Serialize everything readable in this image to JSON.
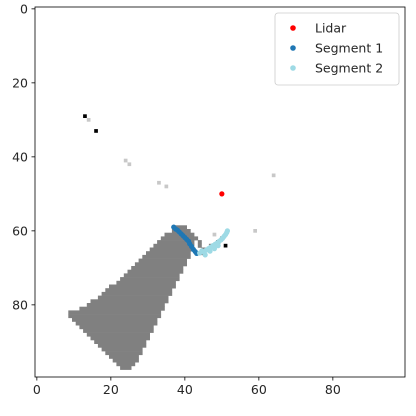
{
  "chart_data": {
    "type": "scatter",
    "title": "",
    "xlabel": "",
    "ylabel": "",
    "xlim": [
      -0.5,
      99.5
    ],
    "ylim": [
      99.5,
      -0.5
    ],
    "y_inverted": true,
    "grid": false,
    "x_ticks": [
      0,
      20,
      40,
      60,
      80
    ],
    "y_ticks": [
      0,
      20,
      40,
      60,
      80
    ],
    "legend_position": "top-right",
    "background_image": {
      "type": "occupancy-grid",
      "colors": {
        "occupied": "#000000",
        "unknown": "#808080",
        "faint": "#c8c8c8"
      },
      "occupied_cells": [
        [
          13,
          29
        ],
        [
          16,
          33
        ],
        [
          51,
          64
        ],
        [
          49,
          63
        ]
      ],
      "faint_cells": [
        [
          14,
          30
        ],
        [
          24,
          41
        ],
        [
          25,
          42
        ],
        [
          33,
          47
        ],
        [
          35,
          48
        ],
        [
          59,
          60
        ],
        [
          64,
          45
        ],
        [
          48,
          61
        ]
      ],
      "unknown_region": {
        "rows": [
          {
            "y": 59,
            "x0": 38,
            "x1": 40
          },
          {
            "y": 60,
            "x0": 37,
            "x1": 41
          },
          {
            "y": 61,
            "x0": 35,
            "x1": 42
          },
          {
            "y": 62,
            "x0": 34,
            "x1": 42
          },
          {
            "y": 63,
            "x0": 33,
            "x1": 42
          },
          {
            "y": 64,
            "x0": 32,
            "x1": 42
          },
          {
            "y": 65,
            "x0": 31,
            "x1": 42
          },
          {
            "y": 66,
            "x0": 30,
            "x1": 41
          },
          {
            "y": 67,
            "x0": 29,
            "x1": 41
          },
          {
            "y": 68,
            "x0": 28,
            "x1": 40
          },
          {
            "y": 69,
            "x0": 27,
            "x1": 40
          },
          {
            "y": 70,
            "x0": 26,
            "x1": 39
          },
          {
            "y": 71,
            "x0": 25,
            "x1": 39
          },
          {
            "y": 72,
            "x0": 24,
            "x1": 38
          },
          {
            "y": 73,
            "x0": 23,
            "x1": 38
          },
          {
            "y": 74,
            "x0": 22,
            "x1": 37
          },
          {
            "y": 75,
            "x0": 20,
            "x1": 37
          },
          {
            "y": 76,
            "x0": 19,
            "x1": 36
          },
          {
            "y": 77,
            "x0": 18,
            "x1": 36
          },
          {
            "y": 78,
            "x0": 17,
            "x1": 35
          },
          {
            "y": 79,
            "x0": 15,
            "x1": 35
          },
          {
            "y": 80,
            "x0": 14,
            "x1": 34
          },
          {
            "y": 81,
            "x0": 12,
            "x1": 34
          },
          {
            "y": 82,
            "x0": 9,
            "x1": 33
          },
          {
            "y": 83,
            "x0": 9,
            "x1": 33
          },
          {
            "y": 84,
            "x0": 10,
            "x1": 32
          },
          {
            "y": 85,
            "x0": 11,
            "x1": 32
          },
          {
            "y": 86,
            "x0": 12,
            "x1": 31
          },
          {
            "y": 87,
            "x0": 13,
            "x1": 31
          },
          {
            "y": 88,
            "x0": 14,
            "x1": 30
          },
          {
            "y": 89,
            "x0": 15,
            "x1": 30
          },
          {
            "y": 90,
            "x0": 16,
            "x1": 29
          },
          {
            "y": 91,
            "x0": 17,
            "x1": 29
          },
          {
            "y": 92,
            "x0": 18,
            "x1": 28
          },
          {
            "y": 93,
            "x0": 19,
            "x1": 28
          },
          {
            "y": 94,
            "x0": 20,
            "x1": 27
          },
          {
            "y": 95,
            "x0": 21,
            "x1": 27
          },
          {
            "y": 96,
            "x0": 22,
            "x1": 26
          },
          {
            "y": 97,
            "x0": 23,
            "x1": 25
          }
        ],
        "extra_cells": [
          [
            43,
            62
          ],
          [
            44,
            63
          ],
          [
            44,
            64
          ],
          [
            45,
            65
          ],
          [
            45,
            66
          ],
          [
            46,
            65
          ],
          [
            47,
            64
          ],
          [
            48,
            64
          ],
          [
            49,
            63
          ],
          [
            50,
            62
          ]
        ]
      }
    },
    "series": [
      {
        "name": "Lidar",
        "color": "#ff0000",
        "points": [
          [
            50,
            50
          ]
        ]
      },
      {
        "name": "Segment 1",
        "color": "#1f77b4",
        "points": [
          [
            37,
            59
          ],
          [
            37.5,
            59.5
          ],
          [
            38,
            59.8
          ],
          [
            38.5,
            60.3
          ],
          [
            39,
            60.8
          ],
          [
            39.5,
            61.3
          ],
          [
            40,
            61.8
          ],
          [
            40.5,
            62.3
          ],
          [
            41,
            62.8
          ],
          [
            41.3,
            63.5
          ],
          [
            41.8,
            64.2
          ],
          [
            42.3,
            65
          ],
          [
            42.8,
            65.6
          ],
          [
            43.2,
            66.1
          ]
        ]
      },
      {
        "name": "Segment 2",
        "color": "#9edae5",
        "points": [
          [
            44,
            66
          ],
          [
            44.6,
            65.4
          ],
          [
            45.2,
            65.8
          ],
          [
            45.8,
            65.2
          ],
          [
            46.4,
            64.8
          ],
          [
            47,
            64.4
          ],
          [
            47.6,
            64
          ],
          [
            48.2,
            63.6
          ],
          [
            48.8,
            63.2
          ],
          [
            49.3,
            62.8
          ],
          [
            49.8,
            62.4
          ],
          [
            50.2,
            62
          ],
          [
            50.6,
            61.5
          ],
          [
            51,
            61
          ],
          [
            51.3,
            60.5
          ],
          [
            51.5,
            60
          ],
          [
            45.5,
            66.5
          ],
          [
            46.8,
            65.5
          ],
          [
            48,
            64.8
          ],
          [
            49,
            64
          ]
        ]
      }
    ]
  }
}
